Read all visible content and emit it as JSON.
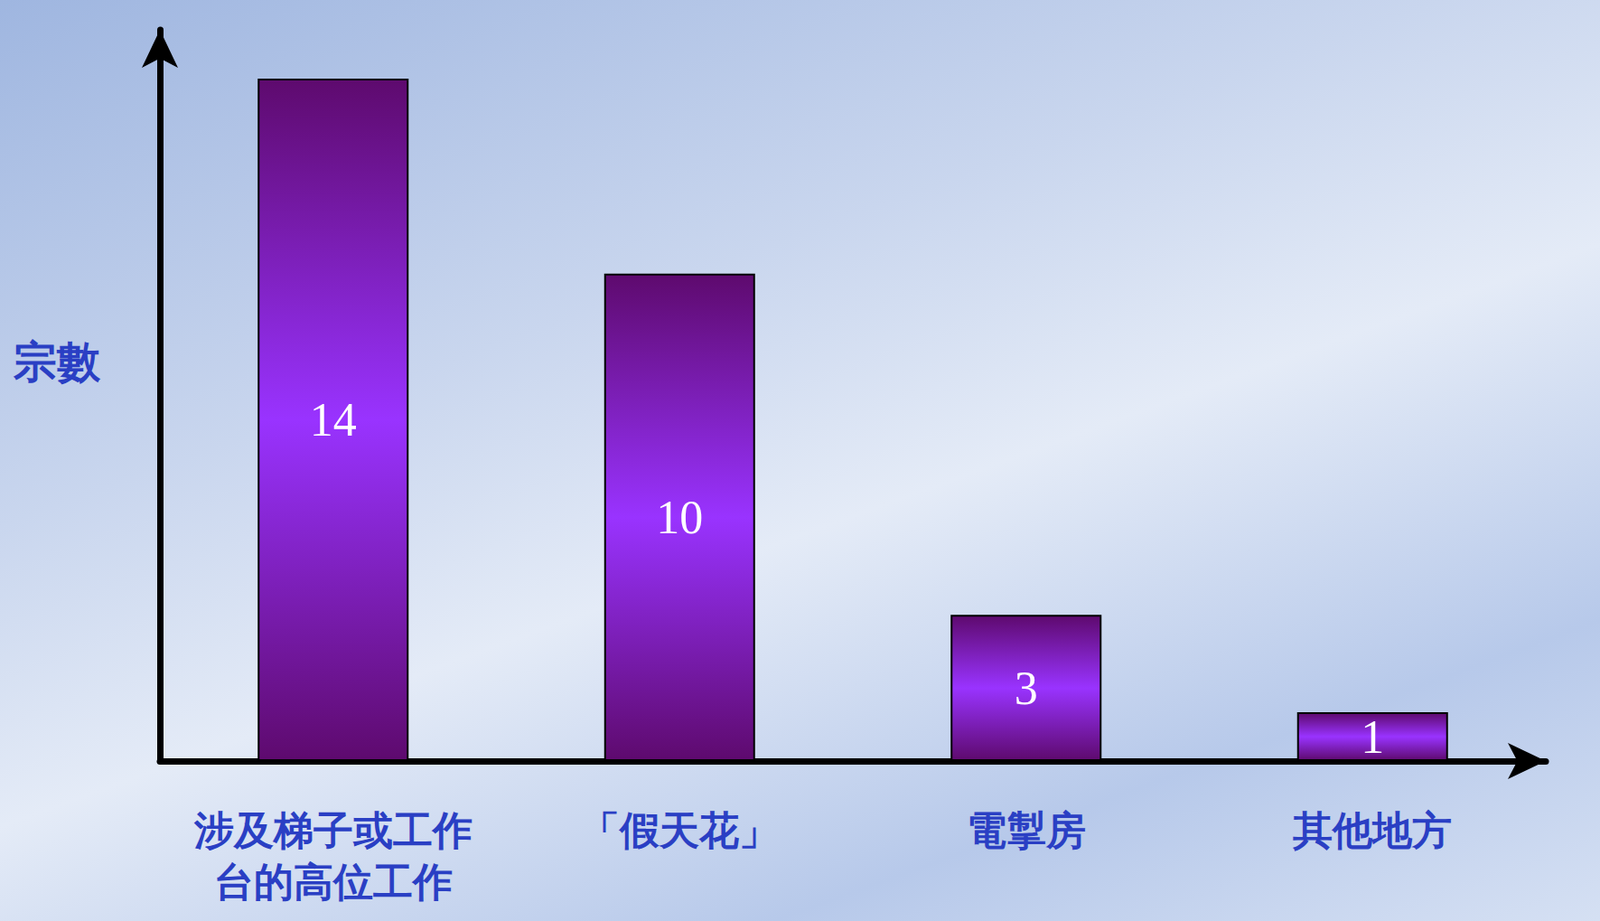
{
  "chart_data": {
    "type": "bar",
    "y_label": "宗數",
    "categories": [
      "涉及梯子或工作台的高位工作",
      "「假天花」",
      "電掣房",
      "其他地方"
    ],
    "values": [
      14,
      10,
      3,
      1
    ],
    "color": "#9933ff",
    "ylim": [
      0,
      15
    ],
    "grid": false,
    "data_labels": true,
    "tick_labels": "x"
  }
}
